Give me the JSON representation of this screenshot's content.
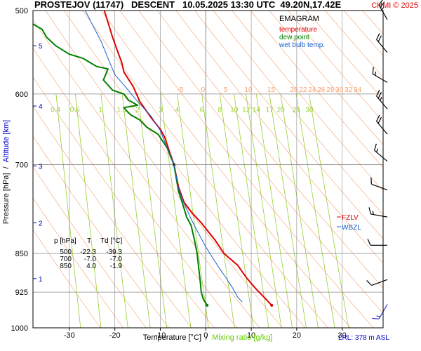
{
  "chart_data": {
    "type": "line",
    "title": "PROSTEJOV (11747)   DESCENT   10.05.2025 13:30 UTC  49.20N,17.42E",
    "copyright": "CHMI © 2025",
    "chart_kind": "EMAGRAM",
    "legend": {
      "position": "top-right",
      "items": [
        {
          "label": "temperature",
          "color": "#e00000"
        },
        {
          "label": "dew point",
          "color": "#008000"
        },
        {
          "label": "wet bulb temp.",
          "color": "#1a5fd0"
        }
      ]
    },
    "xlabel": "Temperature [°C]",
    "xlabel_sep": "/",
    "xlabel2": "Mixing ratio [g/kg]",
    "ylabel": "Pressure [hPa]",
    "ylabel_sep": "/",
    "ylabel2": "Altitude [km]",
    "xlim": [
      -38,
      39
    ],
    "ylim": [
      1000,
      500
    ],
    "y_scale": "log",
    "x_ticks": [
      -30,
      -20,
      -10,
      0,
      10,
      20,
      30
    ],
    "pressure_ticks": [
      500,
      600,
      700,
      850,
      925,
      1000
    ],
    "altitude_ticks": [
      {
        "label": "1",
        "p": 898
      },
      {
        "label": "2",
        "p": 795
      },
      {
        "label": "3",
        "p": 702
      },
      {
        "label": "4",
        "p": 616
      },
      {
        "label": "5",
        "p": 540
      }
    ],
    "temperature_labels": [
      {
        "t": -5,
        "text": "-5"
      },
      {
        "t": 0,
        "text": "0"
      },
      {
        "t": 5,
        "text": "5"
      },
      {
        "t": 10,
        "text": "10"
      },
      {
        "t": 15,
        "text": "15"
      },
      {
        "t": 20,
        "text": "20"
      },
      {
        "t": 22,
        "text": "22"
      },
      {
        "t": 24,
        "text": "24"
      },
      {
        "t": 26,
        "text": "26"
      },
      {
        "t": 28,
        "text": "28"
      },
      {
        "t": 30,
        "text": "30"
      },
      {
        "t": 32,
        "text": "32"
      },
      {
        "t": 34,
        "text": "34"
      }
    ],
    "mixing_ratio_labels": [
      "0.4",
      "0.6",
      "1",
      "1.5",
      "2",
      "3",
      "4",
      "6",
      "8",
      "10",
      "12",
      "14",
      "17",
      "20",
      "25",
      "30"
    ],
    "mixing_ratio_values": [
      0.4,
      0.6,
      1,
      1.5,
      2,
      3,
      4,
      6,
      8,
      10,
      12,
      14,
      17,
      20,
      25,
      30
    ],
    "series": [
      {
        "name": "temperature",
        "color": "#e00000",
        "points": [
          [
            14.5,
            952
          ],
          [
            13,
            937
          ],
          [
            11,
            918
          ],
          [
            9,
            897
          ],
          [
            7,
            872
          ],
          [
            4,
            850
          ],
          [
            2,
            825
          ],
          [
            -1,
            795
          ],
          [
            -3,
            778
          ],
          [
            -4.8,
            760
          ],
          [
            -6,
            735
          ],
          [
            -7,
            700
          ],
          [
            -8,
            680
          ],
          [
            -9,
            660
          ],
          [
            -10,
            648
          ],
          [
            -12,
            632
          ],
          [
            -14.5,
            610
          ],
          [
            -16,
            590
          ],
          [
            -18,
            572
          ],
          [
            -18.5,
            560
          ],
          [
            -19.5,
            545
          ],
          [
            -20.5,
            530
          ],
          [
            -22.3,
            500
          ]
        ]
      },
      {
        "name": "dew point",
        "color": "#008000",
        "points": [
          [
            0.3,
            952
          ],
          [
            -0.5,
            940
          ],
          [
            -1,
            925
          ],
          [
            -1.2,
            905
          ],
          [
            -1.9,
            850
          ],
          [
            -2.5,
            825
          ],
          [
            -3.2,
            800
          ],
          [
            -4.2,
            785
          ],
          [
            -5,
            765
          ],
          [
            -6,
            742
          ],
          [
            -7,
            700
          ],
          [
            -8.5,
            675
          ],
          [
            -10.5,
            655
          ],
          [
            -13,
            645
          ],
          [
            -14.5,
            635
          ],
          [
            -16.5,
            628
          ],
          [
            -17.5,
            622
          ],
          [
            -18,
            618
          ],
          [
            -15,
            615
          ],
          [
            -17,
            608
          ],
          [
            -18,
            600
          ],
          [
            -20.5,
            595
          ],
          [
            -22.5,
            582
          ],
          [
            -21.5,
            568
          ],
          [
            -24,
            565
          ],
          [
            -27,
            555
          ],
          [
            -30,
            550
          ],
          [
            -33,
            540
          ],
          [
            -35,
            530
          ],
          [
            -36,
            521
          ],
          [
            -38,
            515
          ],
          [
            -39.3,
            500
          ]
        ]
      },
      {
        "name": "wet bulb temp.",
        "color": "#1a5fd0",
        "points": [
          [
            8,
            945
          ],
          [
            7,
            935
          ],
          [
            6,
            918
          ],
          [
            4.5,
            897
          ],
          [
            3,
            878
          ],
          [
            1.5,
            858
          ],
          [
            0,
            838
          ],
          [
            -1.5,
            815
          ],
          [
            -3,
            792
          ],
          [
            -4.8,
            762
          ],
          [
            -6,
            738
          ],
          [
            -7,
            700
          ],
          [
            -8.5,
            675
          ],
          [
            -10,
            650
          ],
          [
            -12,
            630
          ],
          [
            -15,
            610
          ],
          [
            -17.5,
            592
          ],
          [
            -20,
            575
          ],
          [
            -21.5,
            555
          ],
          [
            -23,
            535
          ],
          [
            -25,
            515
          ],
          [
            -26.5,
            500
          ]
        ]
      }
    ],
    "annotations": [
      {
        "text": "FZLV",
        "color": "#e00000"
      },
      {
        "text": "WBZL",
        "color": "#1a5fd0"
      }
    ],
    "table": {
      "headers": [
        "p [hPa]",
        "T",
        "Td [°C]"
      ],
      "rows": [
        [
          "500",
          "-22.3",
          "-39.3"
        ],
        [
          "700",
          "-7.0",
          "-7.0"
        ],
        [
          "850",
          "4.0",
          "-1.9"
        ]
      ]
    },
    "lrl": "LRL: 378 m ASL",
    "winds": [
      {
        "p": 510,
        "dir": 330,
        "kt": 25
      },
      {
        "p": 548,
        "dir": 320,
        "kt": 20
      },
      {
        "p": 585,
        "dir": 300,
        "kt": 15
      },
      {
        "p": 620,
        "dir": 320,
        "kt": 25
      },
      {
        "p": 655,
        "dir": 320,
        "kt": 20
      },
      {
        "p": 695,
        "dir": 310,
        "kt": 15
      },
      {
        "p": 740,
        "dir": 290,
        "kt": 10
      },
      {
        "p": 785,
        "dir": 280,
        "kt": 15
      },
      {
        "p": 835,
        "dir": 270,
        "kt": 10
      },
      {
        "p": 900,
        "dir": 250,
        "kt": 10
      },
      {
        "p": 950,
        "dir": 210,
        "kt": 15
      }
    ]
  },
  "colors": {
    "isotherm": "#888888",
    "dry_adiabat": "#f4b086",
    "mixing_ratio": "#9acd32",
    "wind_barb": "#000000",
    "wind_barb_low": "#3333cc",
    "temp_label": "#f4a070",
    "mr_label": "#9acd32",
    "axis_label_blue": "#0000cc",
    "mr_text": "#66cc00"
  }
}
